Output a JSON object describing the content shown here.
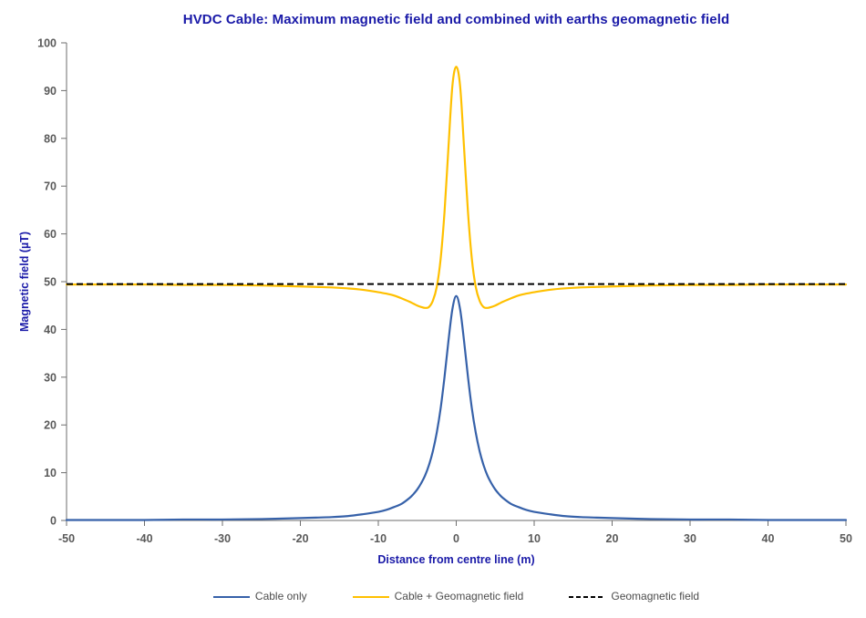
{
  "title": "HVDC Cable: Maximum magnetic field and combined with earths geomagnetic field",
  "colors": {
    "title": "#1A1AA8",
    "axis_title": "#1A1AA8",
    "tick_label": "#595959",
    "axis_line": "#6E6E6E",
    "legend_text": "#4D4D4D",
    "background": "#FFFFFF"
  },
  "chart_data": {
    "type": "line",
    "title": "HVDC Cable: Maximum magnetic field and combined with earths geomagnetic field",
    "xlabel": "Distance from centre line (m)",
    "ylabel": "Magnetic field (µT)",
    "xlim": [
      -50,
      50
    ],
    "ylim": [
      0,
      100
    ],
    "x_ticks": [
      -50,
      -40,
      -30,
      -20,
      -10,
      0,
      10,
      20,
      30,
      40,
      50
    ],
    "y_ticks": [
      0,
      10,
      20,
      30,
      40,
      50,
      60,
      70,
      80,
      90,
      100
    ],
    "grid": false,
    "legend_position": "bottom",
    "x": [
      -50,
      -45,
      -40,
      -35,
      -30,
      -25,
      -20,
      -18,
      -16,
      -14,
      -12,
      -10,
      -9,
      -8,
      -7,
      -6,
      -5.5,
      -5,
      -4.5,
      -4,
      -3.5,
      -3,
      -2.5,
      -2,
      -1.5,
      -1,
      -0.5,
      0,
      0.5,
      1,
      1.5,
      2,
      2.5,
      3,
      3.5,
      4,
      4.5,
      5,
      5.5,
      6,
      7,
      8,
      9,
      10,
      12,
      14,
      16,
      18,
      20,
      25,
      30,
      35,
      40,
      45,
      50
    ],
    "series": [
      {
        "name": "Cable only",
        "color": "#3661A9",
        "style": "solid",
        "values": [
          0.1,
          0.1,
          0.1,
          0.2,
          0.2,
          0.3,
          0.5,
          0.6,
          0.7,
          0.9,
          1.3,
          1.8,
          2.2,
          2.8,
          3.5,
          4.7,
          5.5,
          6.5,
          7.8,
          9.4,
          11.6,
          14.5,
          18.4,
          23.5,
          30.1,
          37.6,
          44.2,
          47,
          44.2,
          37.6,
          30.1,
          23.5,
          18.4,
          14.5,
          11.6,
          9.4,
          7.8,
          6.5,
          5.5,
          4.7,
          3.5,
          2.8,
          2.2,
          1.8,
          1.3,
          0.9,
          0.7,
          0.6,
          0.5,
          0.3,
          0.2,
          0.2,
          0.1,
          0.1,
          0.1
        ]
      },
      {
        "name": "Cable + Geomagnetic field",
        "color": "#FFC000",
        "style": "solid",
        "values": [
          49.4,
          49.4,
          49.4,
          49.3,
          49.3,
          49.2,
          49.0,
          48.9,
          48.8,
          48.6,
          48.3,
          47.8,
          47.5,
          47.1,
          46.5,
          45.8,
          45.4,
          45.0,
          44.7,
          44.5,
          44.7,
          46.0,
          48.9,
          54.8,
          64.7,
          78.1,
          90.9,
          95.0,
          90.9,
          78.1,
          64.7,
          54.8,
          48.9,
          46.0,
          44.7,
          44.5,
          44.7,
          45.0,
          45.4,
          45.8,
          46.5,
          47.1,
          47.5,
          47.8,
          48.3,
          48.6,
          48.8,
          48.9,
          49.0,
          49.2,
          49.3,
          49.3,
          49.4,
          49.4,
          49.4
        ]
      },
      {
        "name": "Geomagnetic field",
        "color": "#000000",
        "style": "dashed",
        "constant": 49.5
      }
    ]
  }
}
